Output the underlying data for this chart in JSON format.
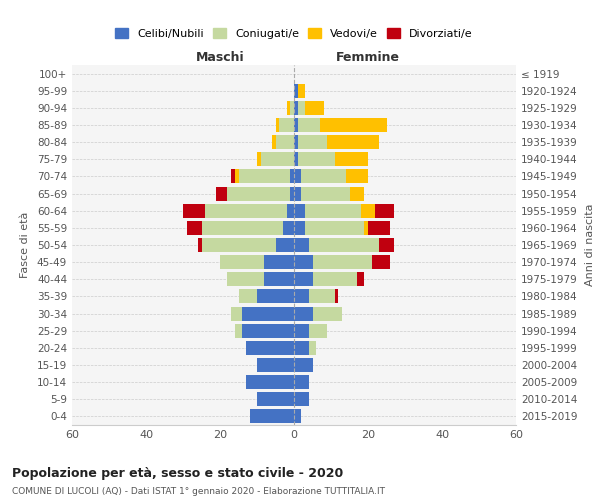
{
  "age_groups": [
    "0-4",
    "5-9",
    "10-14",
    "15-19",
    "20-24",
    "25-29",
    "30-34",
    "35-39",
    "40-44",
    "45-49",
    "50-54",
    "55-59",
    "60-64",
    "65-69",
    "70-74",
    "75-79",
    "80-84",
    "85-89",
    "90-94",
    "95-99",
    "100+"
  ],
  "birth_years": [
    "2015-2019",
    "2010-2014",
    "2005-2009",
    "2000-2004",
    "1995-1999",
    "1990-1994",
    "1985-1989",
    "1980-1984",
    "1975-1979",
    "1970-1974",
    "1965-1969",
    "1960-1964",
    "1955-1959",
    "1950-1954",
    "1945-1949",
    "1940-1944",
    "1935-1939",
    "1930-1934",
    "1925-1929",
    "1920-1924",
    "≤ 1919"
  ],
  "male": {
    "celibi": [
      12,
      10,
      13,
      10,
      13,
      14,
      14,
      10,
      8,
      8,
      5,
      3,
      2,
      1,
      1,
      0,
      0,
      0,
      0,
      0,
      0
    ],
    "coniugati": [
      0,
      0,
      0,
      0,
      0,
      2,
      3,
      5,
      10,
      12,
      20,
      22,
      22,
      17,
      14,
      9,
      5,
      4,
      1,
      0,
      0
    ],
    "vedovi": [
      0,
      0,
      0,
      0,
      0,
      0,
      0,
      0,
      0,
      0,
      0,
      0,
      0,
      0,
      1,
      1,
      1,
      1,
      1,
      0,
      0
    ],
    "divorziati": [
      0,
      0,
      0,
      0,
      0,
      0,
      0,
      0,
      0,
      0,
      1,
      4,
      6,
      3,
      1,
      0,
      0,
      0,
      0,
      0,
      0
    ]
  },
  "female": {
    "nubili": [
      2,
      4,
      4,
      5,
      4,
      4,
      5,
      4,
      5,
      5,
      4,
      3,
      3,
      2,
      2,
      1,
      1,
      1,
      1,
      1,
      0
    ],
    "coniugate": [
      0,
      0,
      0,
      0,
      2,
      5,
      8,
      7,
      12,
      16,
      19,
      16,
      15,
      13,
      12,
      10,
      8,
      6,
      2,
      0,
      0
    ],
    "vedove": [
      0,
      0,
      0,
      0,
      0,
      0,
      0,
      0,
      0,
      0,
      0,
      1,
      4,
      4,
      6,
      9,
      14,
      18,
      5,
      2,
      0
    ],
    "divorziate": [
      0,
      0,
      0,
      0,
      0,
      0,
      0,
      1,
      2,
      5,
      4,
      6,
      5,
      0,
      0,
      0,
      0,
      0,
      0,
      0,
      0
    ]
  },
  "colors": {
    "celibi": "#4472C4",
    "coniugati": "#c5d9a0",
    "vedovi": "#ffc000",
    "divorziati": "#c0000f"
  },
  "xlim": 60,
  "title": "Popolazione per età, sesso e stato civile - 2020",
  "subtitle": "COMUNE DI LUCOLI (AQ) - Dati ISTAT 1° gennaio 2020 - Elaborazione TUTTITALIA.IT",
  "ylabel_left": "Fasce di età",
  "ylabel_right": "Anni di nascita",
  "legend_labels": [
    "Celibi/Nubili",
    "Coniugati/e",
    "Vedovi/e",
    "Divorziati/e"
  ],
  "maschi_label": "Maschi",
  "femmine_label": "Femmine",
  "background_color": "#f5f5f5"
}
